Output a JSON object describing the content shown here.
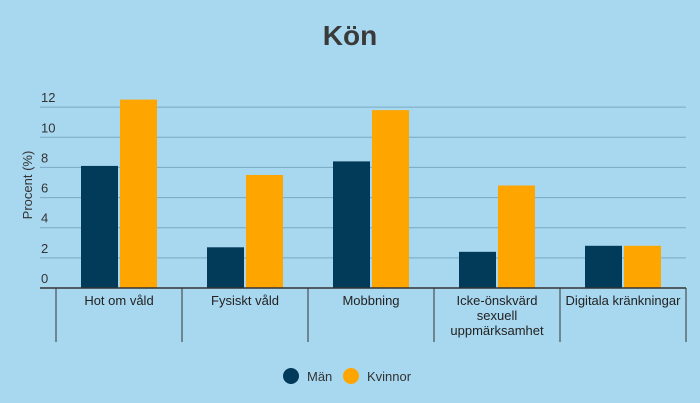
{
  "chart_data": {
    "type": "bar",
    "title": "Kön",
    "xlabel": "",
    "ylabel": "Procent (%)",
    "categories": [
      [
        "Hot om våld"
      ],
      [
        "Fysiskt våld"
      ],
      [
        "Mobbning"
      ],
      [
        "Icke-önskvärd",
        "sexuell",
        "uppmärksamhet"
      ],
      [
        "Digitala kränkningar"
      ]
    ],
    "series": [
      {
        "name": "Män",
        "color": "#023a5a",
        "values": [
          8.1,
          2.7,
          8.4,
          2.4,
          2.8
        ]
      },
      {
        "name": "Kvinnor",
        "color": "#ffa500",
        "values": [
          12.5,
          7.5,
          11.8,
          6.8,
          2.8
        ]
      }
    ],
    "ylim": [
      0,
      13.8
    ],
    "yticks": [
      0,
      2,
      4,
      6,
      8,
      10,
      12
    ],
    "grid": true,
    "legend": "bottom-center"
  },
  "colors": {
    "background": "#a8d8f0",
    "gridline": "#7aa7c2",
    "axis": "#333333"
  }
}
